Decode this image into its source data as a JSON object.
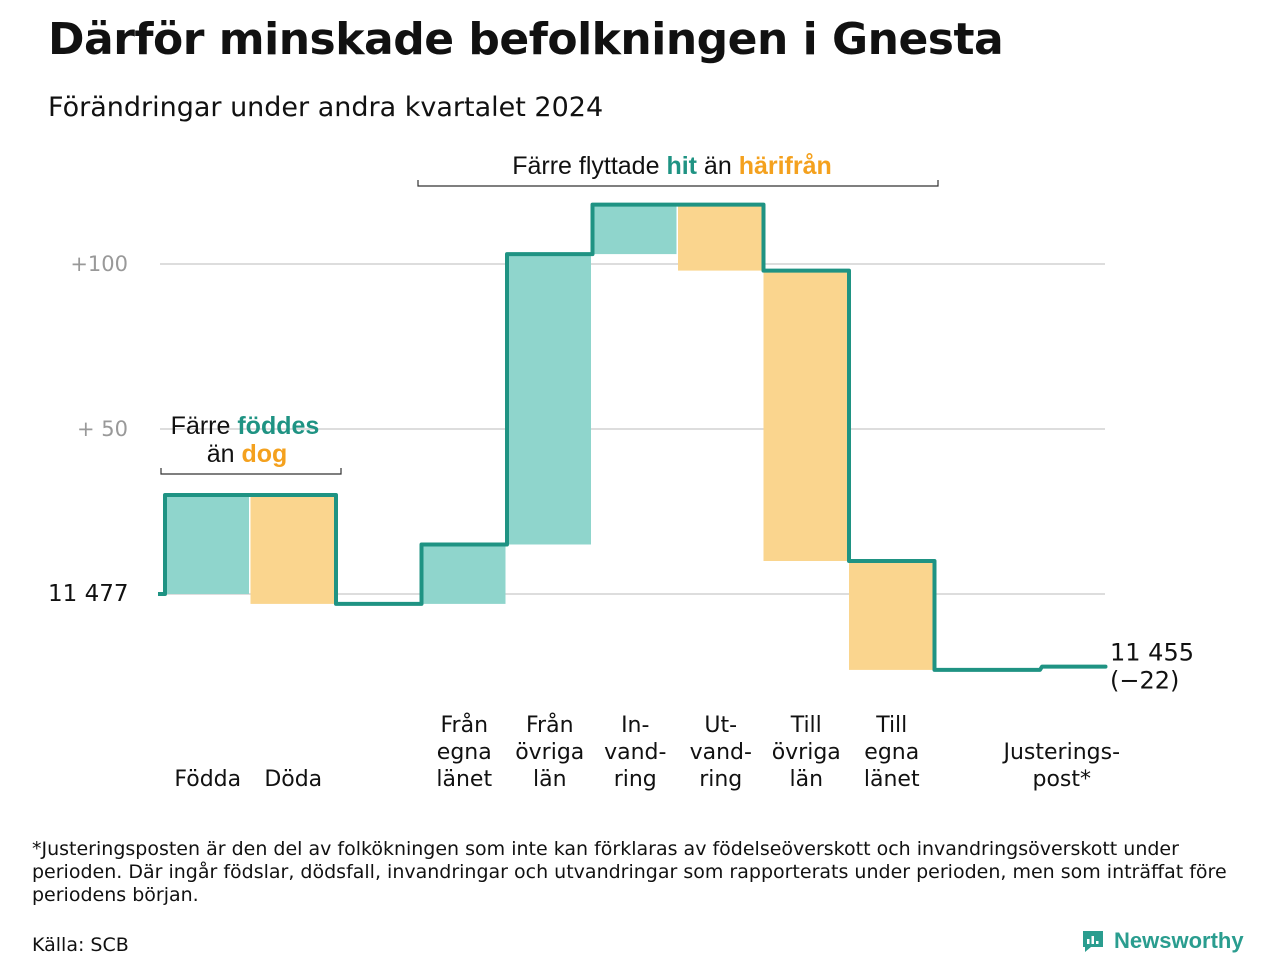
{
  "header": {
    "title": "Därför minskade befolkningen i Gnesta",
    "subtitle": "Förändringar under andra kvartalet 2024"
  },
  "colors": {
    "inflow": "#8fd5cc",
    "outflow": "#fad58e",
    "line": "#1f9383",
    "accent_teal": "#1f9383",
    "accent_orange": "#f4a11e",
    "grid": "#dddddd"
  },
  "chart_data": {
    "type": "waterfall",
    "start": {
      "value": 11477,
      "label": "11  477"
    },
    "end": {
      "value": 11455,
      "label": "11 455",
      "change_label": "(−22)"
    },
    "y_ticks": [
      {
        "value": 11577,
        "label": "+100"
      },
      {
        "value": 11527,
        "label": "+  50"
      }
    ],
    "ylim": [
      11440,
      11600
    ],
    "grid": true,
    "steps": [
      {
        "label": "Födda",
        "delta": 30,
        "kind": "in"
      },
      {
        "label": "Döda",
        "delta": -33,
        "kind": "out"
      },
      {
        "label": "",
        "delta": 0,
        "kind": "none"
      },
      {
        "label": "Från egna länet",
        "label_lines": [
          "Från",
          "egna",
          "länet"
        ],
        "delta": 18,
        "kind": "in"
      },
      {
        "label": "Från övriga län",
        "label_lines": [
          "Från",
          "övriga",
          "län"
        ],
        "delta": 88,
        "kind": "in"
      },
      {
        "label": "In-vandring",
        "label_lines": [
          "In-",
          "vand-",
          "ring"
        ],
        "delta": 15,
        "kind": "in"
      },
      {
        "label": "Ut-vandring",
        "label_lines": [
          "Ut-",
          "vand-",
          "ring"
        ],
        "delta": -20,
        "kind": "out"
      },
      {
        "label": "Till övriga län",
        "label_lines": [
          "Till",
          "övriga",
          "län"
        ],
        "delta": -88,
        "kind": "out"
      },
      {
        "label": "Till egna länet",
        "label_lines": [
          "Till",
          "egna",
          "länet"
        ],
        "delta": -33,
        "kind": "out"
      },
      {
        "label": "",
        "delta": 0,
        "kind": "none"
      },
      {
        "label": "Justeringspost*",
        "label_lines": [
          "Justerings-",
          "post*"
        ],
        "delta": 1,
        "kind": "none"
      }
    ],
    "annotations": [
      {
        "id": "births",
        "parts": [
          {
            "text": "Färre ",
            "style": "normal"
          },
          {
            "text": "föddes",
            "style": "teal"
          },
          {
            "text": "än ",
            "style": "normal"
          },
          {
            "text": "dog",
            "style": "orange"
          }
        ]
      },
      {
        "id": "moves",
        "parts": [
          {
            "text": "Färre flyttade ",
            "style": "normal"
          },
          {
            "text": "hit",
            "style": "teal"
          },
          {
            "text": " än ",
            "style": "normal"
          },
          {
            "text": "härifrån",
            "style": "orange"
          }
        ]
      }
    ]
  },
  "footer": {
    "note": "*Justeringsposten är den del av folkökningen som inte kan förklaras av födelseöverskott och invandringsöverskott under perioden. Där ingår födslar, dödsfall, invandringar och utvandringar som rapporterats under perioden, men som inträffat före periodens början.",
    "source": "Källa: SCB",
    "brand": "Newsworthy"
  }
}
